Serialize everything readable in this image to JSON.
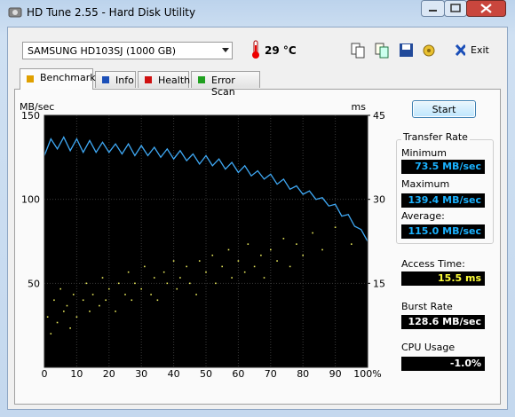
{
  "window": {
    "title": "HD Tune 2.55 - Hard Disk Utility"
  },
  "toolbar": {
    "drive": "SAMSUNG HD103SJ (1000 GB)",
    "temperature": "29 °C",
    "exit": "Exit"
  },
  "tabs": [
    "Benchmark",
    "Info",
    "Health",
    "Error Scan"
  ],
  "chart_data": {
    "type": "line",
    "y_label": "MB/sec",
    "y2_label": "ms",
    "xlim": [
      0,
      100
    ],
    "xticks": [
      0,
      10,
      20,
      30,
      40,
      50,
      60,
      70,
      80,
      90,
      {
        "value": 100,
        "label": "100%"
      }
    ],
    "ylim": [
      0,
      150
    ],
    "yticks": [
      50,
      100,
      150
    ],
    "y2lim": [
      0,
      45
    ],
    "y2ticks": [
      15,
      30,
      45
    ],
    "grid": true,
    "series": [
      {
        "name": "Transfer Rate",
        "type": "line",
        "color": "#3fa9f5",
        "x": [
          0,
          2,
          4,
          6,
          8,
          10,
          12,
          14,
          16,
          18,
          20,
          22,
          24,
          26,
          28,
          30,
          32,
          34,
          36,
          38,
          40,
          42,
          44,
          46,
          48,
          50,
          52,
          54,
          56,
          58,
          60,
          62,
          64,
          66,
          68,
          70,
          72,
          74,
          76,
          78,
          80,
          82,
          84,
          86,
          88,
          90,
          92,
          94,
          96,
          98,
          100
        ],
        "values": [
          126,
          136,
          130,
          137,
          129,
          136,
          128,
          135,
          128,
          134,
          128,
          133,
          127,
          133,
          126,
          132,
          126,
          131,
          125,
          130,
          124,
          129,
          123,
          127,
          121,
          126,
          120,
          124,
          118,
          122,
          116,
          120,
          114,
          117,
          112,
          115,
          109,
          112,
          106,
          108,
          103,
          105,
          100,
          101,
          96,
          97,
          90,
          91,
          84,
          82,
          75
        ]
      },
      {
        "type": "scatter",
        "color": "#e6e65a",
        "axis": "y2",
        "x": [
          1,
          2,
          3,
          4,
          5,
          6,
          7,
          8,
          9,
          10,
          12,
          13,
          14,
          15,
          17,
          18,
          19,
          20,
          22,
          23,
          25,
          26,
          27,
          28,
          30,
          31,
          33,
          34,
          35,
          37,
          38,
          40,
          41,
          42,
          44,
          45,
          47,
          48,
          50,
          52,
          53,
          55,
          57,
          58,
          60,
          62,
          63,
          65,
          67,
          68,
          70,
          72,
          74,
          76,
          78,
          80,
          83,
          86,
          90,
          95
        ],
        "values": [
          9,
          6,
          12,
          8,
          14,
          10,
          11,
          7,
          13,
          9,
          12,
          15,
          10,
          13,
          11,
          16,
          12,
          14,
          10,
          15,
          13,
          17,
          12,
          15,
          14,
          18,
          13,
          16,
          12,
          17,
          15,
          19,
          14,
          16,
          18,
          15,
          13,
          19,
          17,
          20,
          15,
          18,
          21,
          16,
          19,
          17,
          22,
          18,
          20,
          16,
          21,
          19,
          23,
          18,
          22,
          20,
          24,
          21,
          25,
          22
        ]
      }
    ]
  },
  "side": {
    "start": "Start",
    "transfer": {
      "min_label": "Minimum",
      "min": "73.5 MB/sec",
      "max_label": "Maximum",
      "max": "139.4 MB/sec",
      "avg_label": "Average:",
      "avg": "115.0 MB/sec"
    },
    "access_label": "Access Time:",
    "access": "15.5 ms",
    "burst_label": "Burst Rate",
    "burst": "128.6 MB/sec",
    "cpu_label": "CPU Usage",
    "cpu": "-1.0%"
  }
}
